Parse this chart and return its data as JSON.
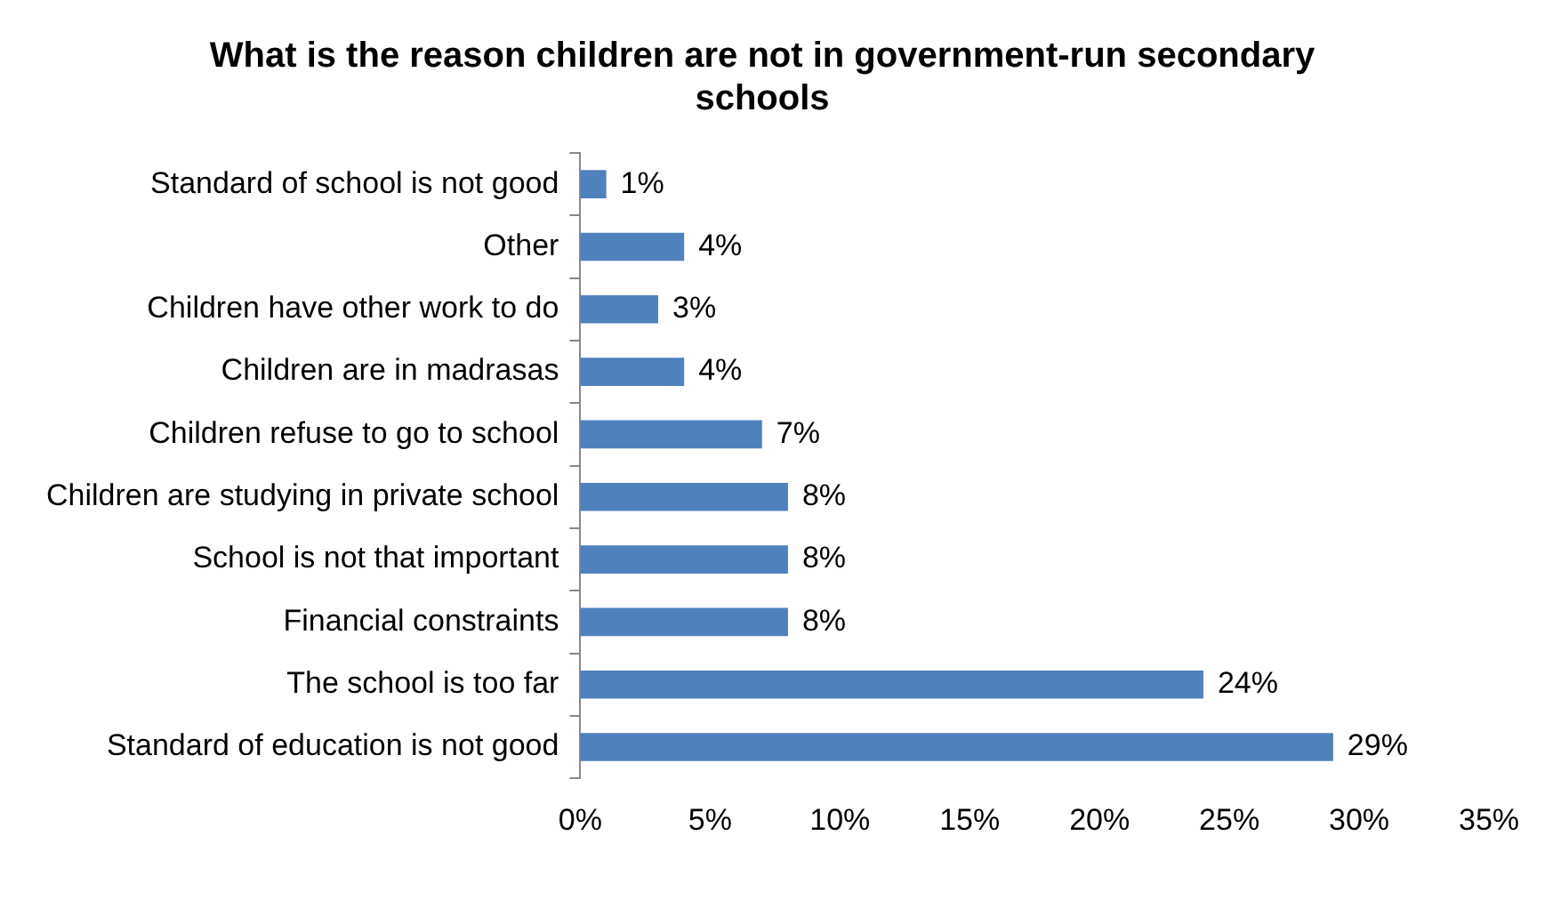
{
  "chart_data": {
    "type": "bar",
    "orientation": "horizontal",
    "title": "What is the reason children are not in government-run secondary schools",
    "categories": [
      "Standard of school is not good",
      "Other",
      "Children have other work to do",
      "Children are in madrasas",
      "Children refuse to go to school",
      "Children are studying in private school",
      "School is not that important",
      "Financial constraints",
      "The school is too far",
      "Standard of education is not good"
    ],
    "values": [
      1,
      4,
      3,
      4,
      7,
      8,
      8,
      8,
      24,
      29
    ],
    "value_labels": [
      "1%",
      "4%",
      "3%",
      "4%",
      "7%",
      "8%",
      "8%",
      "8%",
      "24%",
      "29%"
    ],
    "color": "#4f81bd",
    "xlim": [
      0,
      35
    ],
    "xticks": [
      {
        "value": 0,
        "label": "0%"
      },
      {
        "value": 5,
        "label": "5%"
      },
      {
        "value": 10,
        "label": "10%"
      },
      {
        "value": 15,
        "label": "15%"
      },
      {
        "value": 20,
        "label": "20%"
      },
      {
        "value": 25,
        "label": "25%"
      },
      {
        "value": 30,
        "label": "30%"
      },
      {
        "value": 35,
        "label": "35%"
      }
    ],
    "grid": false,
    "legend": false
  }
}
